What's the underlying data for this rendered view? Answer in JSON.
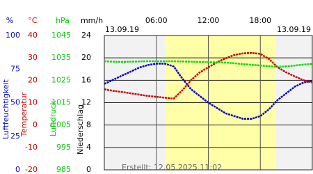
{
  "chart_data": {
    "type": "line",
    "date_left": "13.09.19",
    "date_right": "13.09.19",
    "footer": "Erstellt: 12.05.2025 11:02",
    "daylight": [
      7.0,
      19.8
    ],
    "daylight_color": "#ffffa8",
    "xlim": [
      0,
      24
    ],
    "xticks": [
      {
        "value": 6,
        "label": "06:00"
      },
      {
        "value": 12,
        "label": "12:00"
      },
      {
        "value": 18,
        "label": "18:00"
      }
    ],
    "yunit": "%",
    "ylabel": "Luftfeuchtigkeit",
    "ycolor": "#0000cc",
    "ylim": [
      0,
      100
    ],
    "yticks": [
      0,
      25,
      50,
      75,
      100
    ],
    "y2unit": "°C",
    "y2label": "Temperatur",
    "y2color": "#cc0000",
    "y2lim": [
      -20,
      40
    ],
    "y2ticks": [
      -20,
      -10,
      0,
      10,
      20,
      30,
      40
    ],
    "y3unit": "hPa",
    "y3label": "Luftdruck",
    "y3color": "#00cc00",
    "y3lim": [
      985,
      1045
    ],
    "y3ticks": [
      985,
      995,
      1005,
      1015,
      1025,
      1035,
      1045
    ],
    "y4unit": "mm/h",
    "y4label": "Niederschlag",
    "y4color": "#000000",
    "y4lim": [
      0,
      24
    ],
    "y4ticks": [
      0,
      4,
      8,
      12,
      16,
      20,
      24
    ],
    "x": [
      0,
      1,
      2,
      3,
      4,
      5,
      6,
      7,
      8,
      9,
      10,
      11,
      12,
      13,
      14,
      15,
      16,
      17,
      18,
      19,
      20,
      21,
      22,
      23,
      24
    ],
    "series": [
      {
        "axis": "y",
        "color": "#0000cc",
        "values": [
          64,
          67,
          70,
          73,
          76,
          78,
          79,
          79,
          77,
          68,
          60,
          55,
          50,
          46,
          42,
          40,
          38,
          38,
          40,
          45,
          52,
          57,
          62,
          65,
          66
        ]
      },
      {
        "axis": "y2",
        "color": "#cc0000",
        "values": [
          16,
          15.3,
          14.8,
          14.2,
          13.6,
          13,
          12.6,
          12.2,
          11.8,
          15.5,
          20,
          23.5,
          25.8,
          28,
          29.8,
          31.3,
          32,
          32.2,
          31.8,
          29.5,
          25.8,
          23.5,
          21.7,
          20,
          19
        ]
      },
      {
        "axis": "y3",
        "color": "#00dd00",
        "values": [
          1033.5,
          1033.3,
          1033.2,
          1033.3,
          1033.4,
          1033.5,
          1033.5,
          1033.5,
          1033.5,
          1033.4,
          1033.3,
          1033.2,
          1033.1,
          1033,
          1032.9,
          1032.6,
          1032.2,
          1031.9,
          1031.6,
          1031.3,
          1031,
          1031.2,
          1031.6,
          1032,
          1032.3
        ]
      }
    ]
  }
}
